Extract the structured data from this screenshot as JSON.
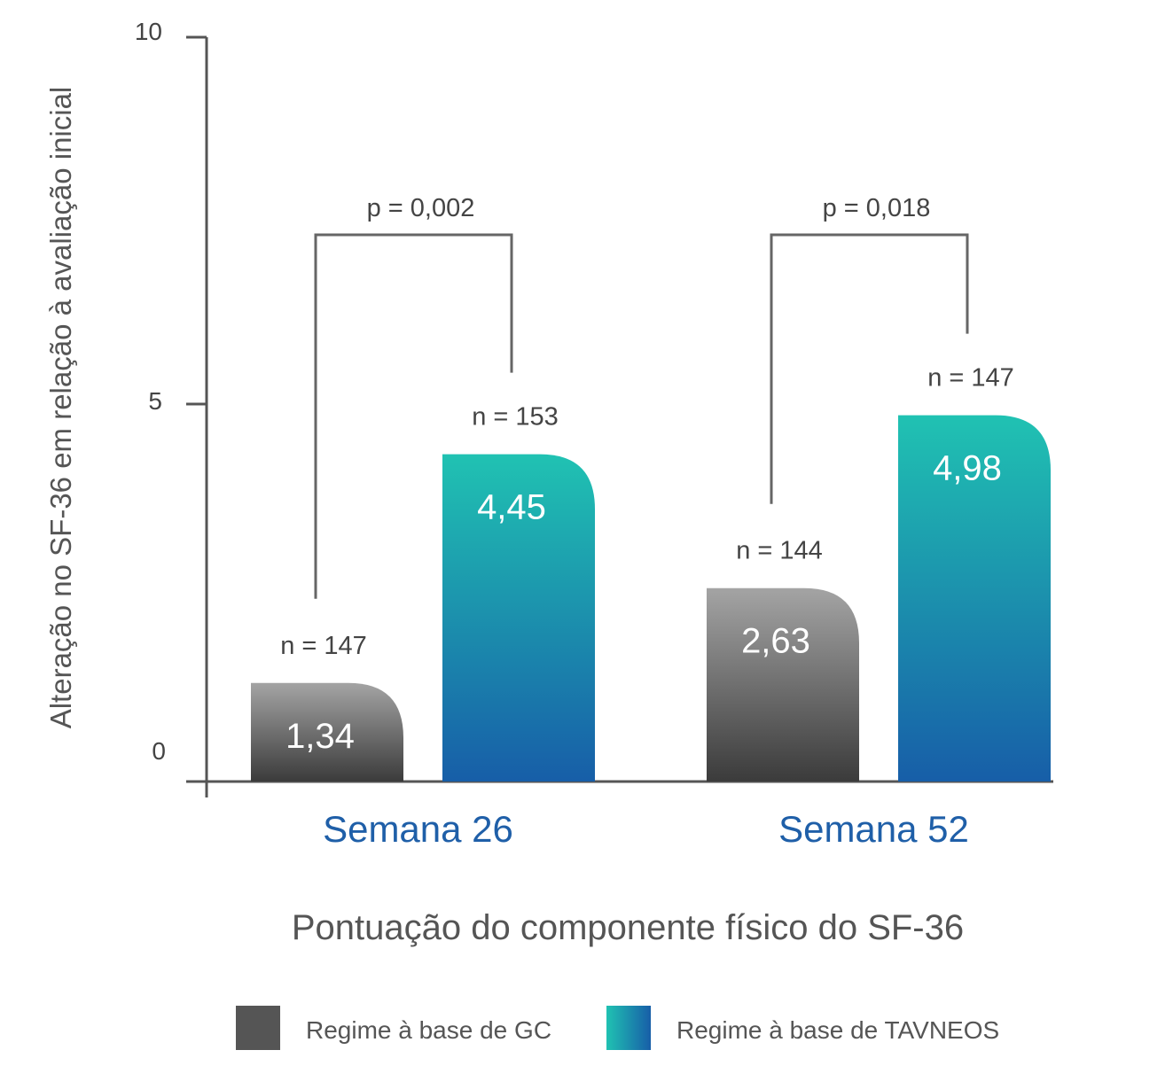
{
  "chart_data": {
    "type": "bar",
    "ylabel": "Alteração no SF-36 em relação à avaliação inicial",
    "xlabel": "Pontuação do componente físico do SF-36",
    "ylim": [
      -0.2,
      10
    ],
    "yticks": [
      {
        "value": 10,
        "label": "10"
      },
      {
        "value": 5,
        "label": "5"
      },
      {
        "value": 0,
        "label": "0"
      }
    ],
    "categories": [
      "Semana 26",
      "Semana 52"
    ],
    "series": [
      {
        "name": "Regime à base de GC",
        "values": [
          1.34,
          2.63
        ],
        "value_labels": [
          "1,34",
          "2,63"
        ],
        "n_labels": [
          "n = 147",
          "n = 144"
        ]
      },
      {
        "name": "Regime à base de TAVNEOS",
        "values": [
          4.45,
          4.98
        ],
        "value_labels": [
          "4,45",
          "4,98"
        ],
        "n_labels": [
          "n = 153",
          "n = 147"
        ]
      }
    ],
    "comparisons": [
      {
        "category": "Semana 26",
        "label": "p = 0,002"
      },
      {
        "category": "Semana 52",
        "label": "p = 0,018"
      }
    ],
    "legend_position": "bottom",
    "grid": false,
    "colors": {
      "gc_top": "#a4a4a4",
      "gc_bottom": "#3b3b3b",
      "tav_top": "#20c2b2",
      "tav_bottom": "#175ea8",
      "axis": "#555555",
      "category_label": "#1f5fa8",
      "bracket": "#666666"
    }
  }
}
